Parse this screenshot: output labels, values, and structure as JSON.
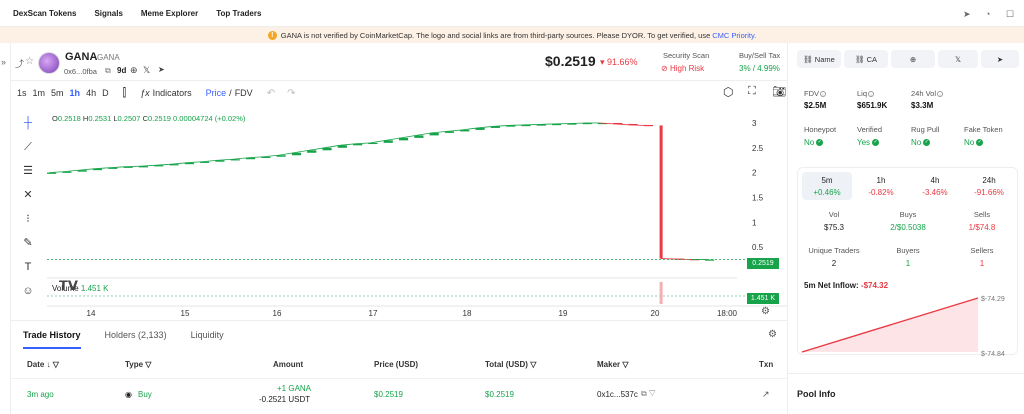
{
  "topnav": {
    "items": [
      "DexScan Tokens",
      "Signals",
      "Meme Explorer",
      "Top Traders"
    ]
  },
  "banner": {
    "text": "GANA is not verified by CoinMarketCap. The logo and social links are from third-party sources. Please DYOR. To get verified, use",
    "link": "CMC Priority."
  },
  "sidebar": {
    "expand": "»"
  },
  "token": {
    "name": "GANA",
    "symbol": "GANA",
    "address": "0x6...0fba",
    "age": "9d",
    "price": "$0.2519",
    "change": "▾ 91.66%"
  },
  "security": {
    "label": "Security Scan",
    "value": "High Risk"
  },
  "tax": {
    "label": "Buy/Sell Tax",
    "value": "3% / 4.99%"
  },
  "toolbar": {
    "timeframes": [
      "1s",
      "1m",
      "5m",
      "1h",
      "4h",
      "D"
    ],
    "active_timeframe": "1h",
    "indicators": "Indicators",
    "price": "Price",
    "sep": "/",
    "fdv": "FDV"
  },
  "ohlc": {
    "o_label": "O",
    "o": "0.2518",
    "h_label": "H",
    "h": "0.2531",
    "l_label": "L",
    "l": "0.2507",
    "c_label": "C",
    "c": "0.2519",
    "chg": "0.00004724 (+0.02%)"
  },
  "chart_data": {
    "type": "line",
    "x_ticks": [
      "14",
      "15",
      "16",
      "17",
      "18",
      "19",
      "20",
      "18:00"
    ],
    "y_ticks": [
      "3",
      "2.5",
      "2",
      "1.5",
      "1",
      "0.5"
    ],
    "ylim": [
      0,
      3.1
    ],
    "last_price_label": "0.2519",
    "volume_label": "Volume",
    "volume_value": "1.451 K",
    "volume_badge": "1.451 K",
    "series": [
      {
        "values": [
          2.0,
          2.02,
          2.05,
          2.08,
          2.1,
          2.12,
          2.13,
          2.15,
          2.17,
          2.2,
          2.22,
          2.25,
          2.27,
          2.3,
          2.32,
          2.35,
          2.4,
          2.45,
          2.5,
          2.55,
          2.58,
          2.6,
          2.65,
          2.7,
          2.75,
          2.8,
          2.83,
          2.86,
          2.9,
          2.93,
          2.95,
          2.96,
          2.97,
          2.98,
          2.99,
          3.0,
          3.0,
          2.98,
          2.96,
          2.95,
          0.27,
          0.26,
          0.2519,
          0.2519
        ]
      }
    ]
  },
  "tabs": {
    "trade_history": "Trade History",
    "holders": "Holders (2,133)",
    "liquidity": "Liquidity"
  },
  "table": {
    "headers": {
      "date": "Date",
      "type": "Type",
      "amount": "Amount",
      "price": "Price (USD)",
      "total": "Total (USD)",
      "maker": "Maker",
      "txn": "Txn"
    },
    "rows": [
      {
        "date": "3m ago",
        "type": "Buy",
        "amount1": "+1 GANA",
        "amount2": "-0.2521 USDT",
        "price": "$0.2519",
        "total": "$0.2519",
        "maker": "0x1c...537c"
      }
    ]
  },
  "right": {
    "links": [
      "Name",
      "CA"
    ],
    "fdv_label": "FDV",
    "fdv": "$2.5M",
    "liq_label": "Liq",
    "liq": "$651.9K",
    "vol_label": "24h Vol",
    "vol": "$3.3M",
    "honeypot_label": "Honeypot",
    "honeypot": "No",
    "verified_label": "Verified",
    "verified": "Yes",
    "rugpull_label": "Rug Pull",
    "rugpull": "No",
    "fake_label": "Fake Token",
    "fake": "No",
    "periods": [
      {
        "label": "5m",
        "change": "+0.46%"
      },
      {
        "label": "1h",
        "change": "-0.82%"
      },
      {
        "label": "4h",
        "change": "-3.46%"
      },
      {
        "label": "24h",
        "change": "-91.66%"
      }
    ],
    "vol5_label": "Vol",
    "vol5": "$75.3",
    "buys_label": "Buys",
    "buys": "2/$0.5038",
    "sells_label": "Sells",
    "sells": "1/$74.8",
    "traders_label": "Unique Traders",
    "traders": "2",
    "buyers_label": "Buyers",
    "buyers": "1",
    "sellers_label": "Sellers",
    "sellers": "1",
    "inflow_label": "5m Net Inflow:",
    "inflow": "-$74.32",
    "inflow_top": "$-74.29",
    "inflow_bottom": "$-74.84",
    "pool_info": "Pool Info"
  },
  "colors": {
    "up": "#16a34a",
    "down": "#ea3943",
    "accent": "#3861fb"
  }
}
